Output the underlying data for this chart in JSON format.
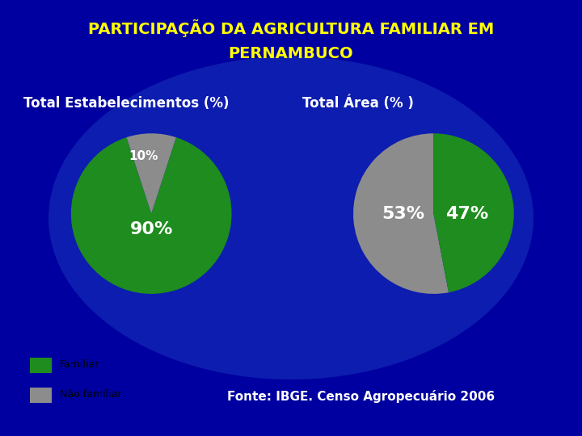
{
  "title_line1": "PARTICIPAÇÃO DA AGRICULTURA FAMILIAR EM",
  "title_line2": "PERNAMBUCO",
  "title_color": "#FFFF00",
  "background_color": "#000080",
  "subtitle1": "Total Estabelecimentos (%)",
  "subtitle2": "Total Área (% )",
  "subtitle_color": "#FFFFFF",
  "pie1_values": [
    90,
    10
  ],
  "pie1_labels": [
    "90%",
    "10%"
  ],
  "pie1_colors": [
    "#1e8c1e",
    "#8c8c8c"
  ],
  "pie1_startangle": 108,
  "pie2_values": [
    53,
    47
  ],
  "pie2_labels": [
    "53%",
    "47%"
  ],
  "pie2_colors": [
    "#8c8c8c",
    "#1e8c1e"
  ],
  "pie2_startangle": 90,
  "legend_labels": [
    "Familiar",
    "Não familiar"
  ],
  "legend_colors": [
    "#1e8c1e",
    "#8c8c8c"
  ],
  "fonte_text": "Fonte: IBGE. Censo Agropecuário 2006",
  "fonte_color": "#FFFFFF",
  "pie_bg_color": "#FFFFFF",
  "label_fontsize": 16,
  "title_fontsize": 14,
  "subtitle_fontsize": 12
}
